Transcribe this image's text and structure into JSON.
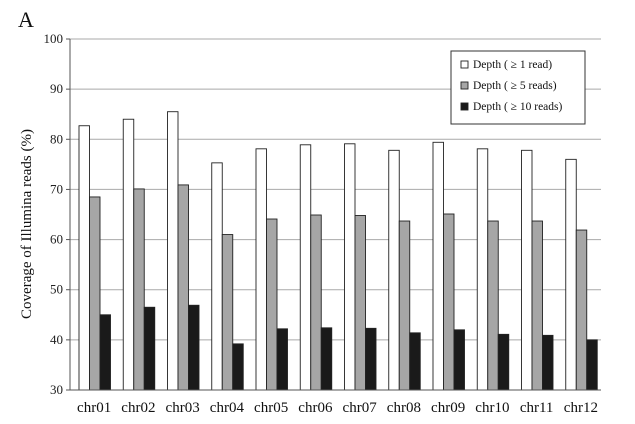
{
  "panel_letter": "A",
  "chart_data": {
    "type": "bar",
    "title": "",
    "xlabel": "",
    "ylabel": "Coverage of Illumina reads (%)",
    "ylim": [
      30,
      100
    ],
    "yticks": [
      30,
      40,
      50,
      60,
      70,
      80,
      90,
      100
    ],
    "grid": true,
    "legend_position": "top-right",
    "categories": [
      "chr01",
      "chr02",
      "chr03",
      "chr04",
      "chr05",
      "chr06",
      "chr07",
      "chr08",
      "chr09",
      "chr10",
      "chr11",
      "chr12"
    ],
    "series": [
      {
        "name": "Depth ( ≥ 1 read)",
        "color": "#ffffff",
        "values": [
          82.7,
          84.0,
          85.5,
          75.3,
          78.1,
          78.9,
          79.1,
          77.8,
          79.4,
          78.1,
          77.8,
          76.0
        ]
      },
      {
        "name": "Depth ( ≥ 5 reads)",
        "color": "#a6a6a6",
        "values": [
          68.5,
          70.1,
          70.9,
          61.0,
          64.1,
          64.9,
          64.8,
          63.7,
          65.1,
          63.7,
          63.7,
          61.9
        ]
      },
      {
        "name": "Depth ( ≥ 10 reads)",
        "color": "#1a1a1a",
        "values": [
          45.0,
          46.5,
          46.9,
          39.2,
          42.2,
          42.4,
          42.3,
          41.4,
          42.0,
          41.1,
          40.9,
          40.0
        ]
      }
    ]
  }
}
